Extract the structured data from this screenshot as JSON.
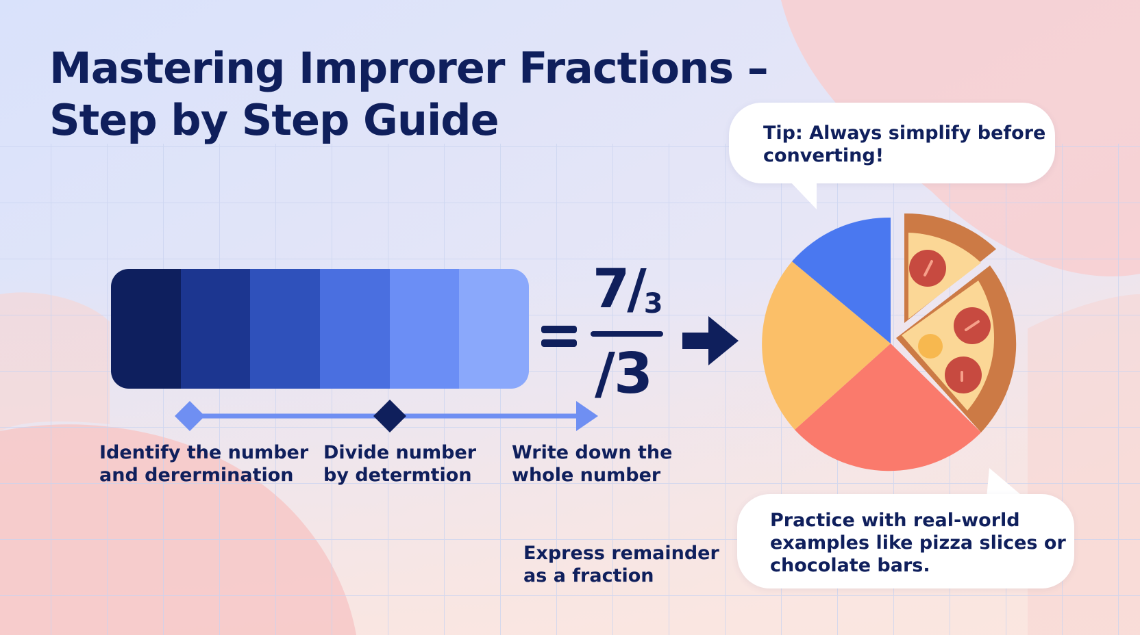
{
  "title": {
    "line1": "Mastering Improrer Fractions –",
    "line2": "Step by Step Guide"
  },
  "equation": {
    "numerator": "7/",
    "numerator_sub": "3",
    "denominator": "/3"
  },
  "steps": [
    {
      "line1": "Identify the number",
      "line2": "and derermination"
    },
    {
      "line1": "Divide number",
      "line2": "by determtion"
    },
    {
      "line1": "Write down the",
      "line2": "whole number"
    },
    {
      "line1": "Express remainder",
      "line2": "as a fraction"
    }
  ],
  "tips": {
    "top": {
      "line1": "Tip: Always simplify before",
      "line2": "converting!"
    },
    "bottom": {
      "line1": "Practice with real-world",
      "line2": "examples like pizza slices or",
      "line3": "chocolate bars."
    }
  },
  "colors": {
    "navy": "#0f1f5c",
    "bar_shades": [
      "#0e1f5e",
      "#1c3690",
      "#2f51bb",
      "#4a6fe0",
      "#6b8ef5",
      "#8aa8fb"
    ],
    "pie_blue": "#4a78f0",
    "pie_orange": "#fbbf68",
    "pie_coral": "#fa7a6c",
    "pizza_crust": "#cc7a45",
    "pizza_cheese": "#fbd796",
    "pepperoni": "#c74a40"
  },
  "icons": [
    "diamond-marker-icon",
    "arrow-right-icon",
    "pie-chart-icon",
    "pizza-slice-icon"
  ]
}
